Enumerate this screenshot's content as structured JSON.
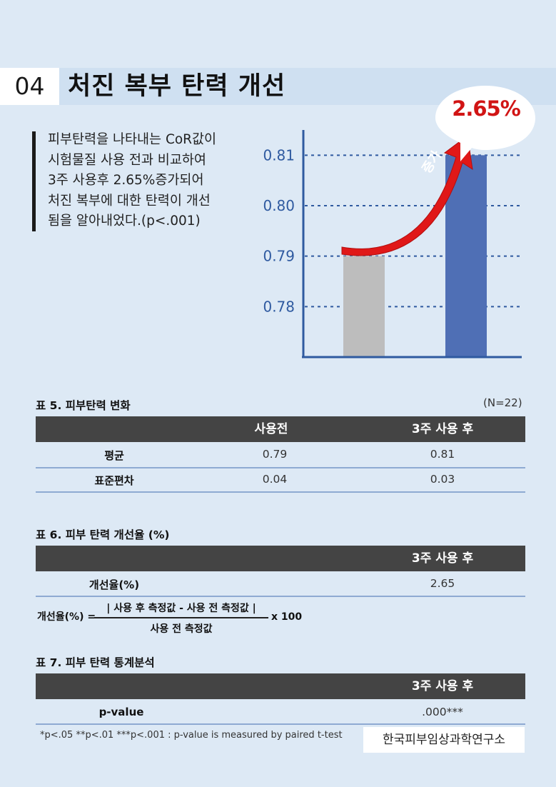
{
  "header": {
    "number": "04",
    "title": "처진 복부 탄력 개선"
  },
  "description": {
    "lines": [
      "피부탄력을 나타내는 CoR값이",
      "시험물질 사용 전과 비교하여",
      "3주 사용후 2.65%증가되어",
      "처진 복부에 대한 탄력이 개선",
      "됨을 알아내었다.(p<.001)"
    ]
  },
  "chart_data": {
    "type": "bar",
    "categories": [
      "",
      ""
    ],
    "values": [
      0.79,
      0.81
    ],
    "colors": [
      "#bdbdbd",
      "#4f6fb5"
    ],
    "ylim": [
      0.77,
      0.815
    ],
    "yticks": [
      "0.81",
      "0.80",
      "0.79",
      "0.78"
    ],
    "grid": "dashed",
    "annotation": "2.65%",
    "arrow_label": "증가",
    "title": "",
    "xlabel": "",
    "ylabel": ""
  },
  "table5": {
    "caption": "표 5. 피부탄력 변화",
    "n": "(N=22)",
    "headers": [
      "",
      "사용전",
      "3주 사용 후"
    ],
    "rows": [
      [
        "평균",
        "0.79",
        "0.81"
      ],
      [
        "표준편차",
        "0.04",
        "0.03"
      ]
    ]
  },
  "table6": {
    "caption": "표 6. 피부 탄력 개선율 (%)",
    "header": "3주 사용 후",
    "row_label": "개선율(%)",
    "row_value": "2.65"
  },
  "formula": {
    "label": "개선율(%) =",
    "numerator": "| 사용 후 측정값 - 사용 전 측정값 |",
    "denominator": "사용 전 측정값",
    "multiplier": "x 100"
  },
  "table7": {
    "caption": "표 7. 피부 탄력 통계분석",
    "header": "3주 사용 후",
    "row_label": "p-value",
    "row_value": ".000***"
  },
  "footnote": "*p<.05 **p<.01 ***p<.001 : p-value is measured by paired t-test",
  "source": "한국피부임상과학연구소",
  "colors": {
    "background": "#dde9f5",
    "accent_blue": "#4f6fb5",
    "accent_red": "#d11414",
    "table_header": "#444444"
  }
}
